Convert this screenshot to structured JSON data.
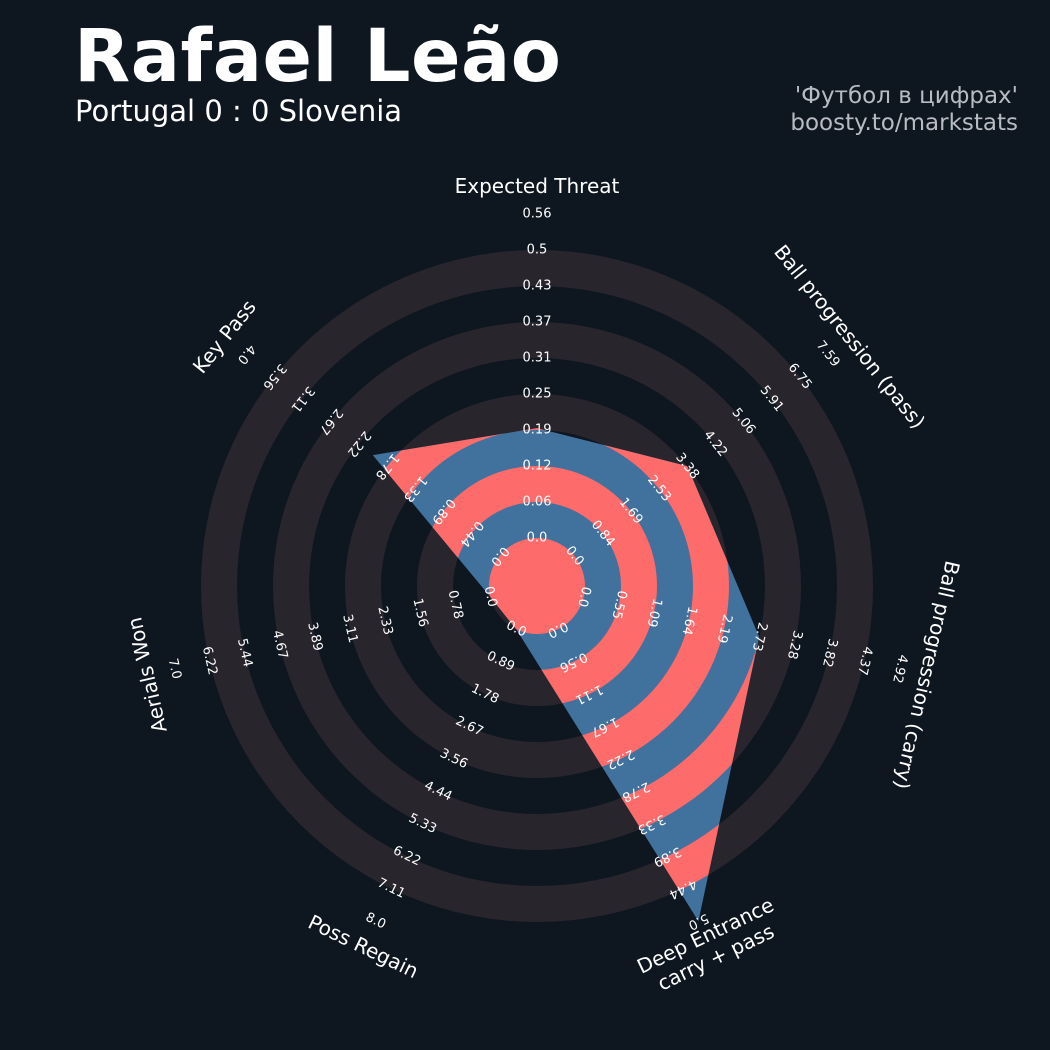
{
  "header": {
    "title": "Rafael Leão",
    "subtitle": "Portugal 0 : 0 Slovenia",
    "credit_line1": "'Футбол в цифрах'",
    "credit_line2": "boosty.to/markstats"
  },
  "colors": {
    "background": "#0e1720",
    "ring_band": "#29252d",
    "player_blue": "#41719d",
    "player_red": "#fe6b6b",
    "text": "#ffffff"
  },
  "chart_data": {
    "type": "radar",
    "title": "Rafael Leão",
    "subtitle": "Portugal 0 : 0 Slovenia",
    "axes": [
      {
        "label": "Expected Threat",
        "min": 0.0,
        "max": 0.56,
        "value": 0.19,
        "ticks": [
          "0.0",
          "0.06",
          "0.12",
          "0.19",
          "0.25",
          "0.31",
          "0.37",
          "0.43",
          "0.5",
          "0.56"
        ]
      },
      {
        "label": "Ball progression (pass)",
        "min": 0.0,
        "max": 7.59,
        "value": 3.38,
        "ticks": [
          "0.0",
          "0.84",
          "1.69",
          "2.53",
          "3.38",
          "4.22",
          "5.06",
          "5.91",
          "6.75",
          "7.59"
        ]
      },
      {
        "label": "Ball progression (carry)",
        "min": 0.0,
        "max": 4.92,
        "value": 2.73,
        "ticks": [
          "0.0",
          "0.55",
          "1.09",
          "1.64",
          "2.19",
          "2.73",
          "3.28",
          "3.82",
          "4.37",
          "4.92"
        ]
      },
      {
        "label": "Deep Entrance\ncarry + pass",
        "min": 0.0,
        "max": 5.0,
        "value": 5.0,
        "ticks": [
          "0.0",
          "0.56",
          "1.11",
          "1.67",
          "2.22",
          "2.78",
          "3.33",
          "3.89",
          "4.44",
          "5.0"
        ]
      },
      {
        "label": "Poss Regain",
        "min": 0.0,
        "max": 8.0,
        "value": 0.0,
        "ticks": [
          "0.0",
          "0.89",
          "1.78",
          "2.67",
          "3.56",
          "4.44",
          "5.33",
          "6.22",
          "7.11",
          "8.0"
        ]
      },
      {
        "label": "Aerials Won",
        "min": 0.0,
        "max": 7.0,
        "value": 0.0,
        "ticks": [
          "0.0",
          "0.78",
          "1.56",
          "2.33",
          "3.11",
          "3.89",
          "4.67",
          "5.44",
          "6.22",
          "7.0"
        ]
      },
      {
        "label": "Key Pass",
        "min": 0.0,
        "max": 4.0,
        "value": 2.0,
        "ticks": [
          "0.0",
          "0.44",
          "0.89",
          "1.33",
          "1.78",
          "2.22",
          "2.67",
          "3.11",
          "3.56",
          "4.0"
        ]
      }
    ]
  }
}
